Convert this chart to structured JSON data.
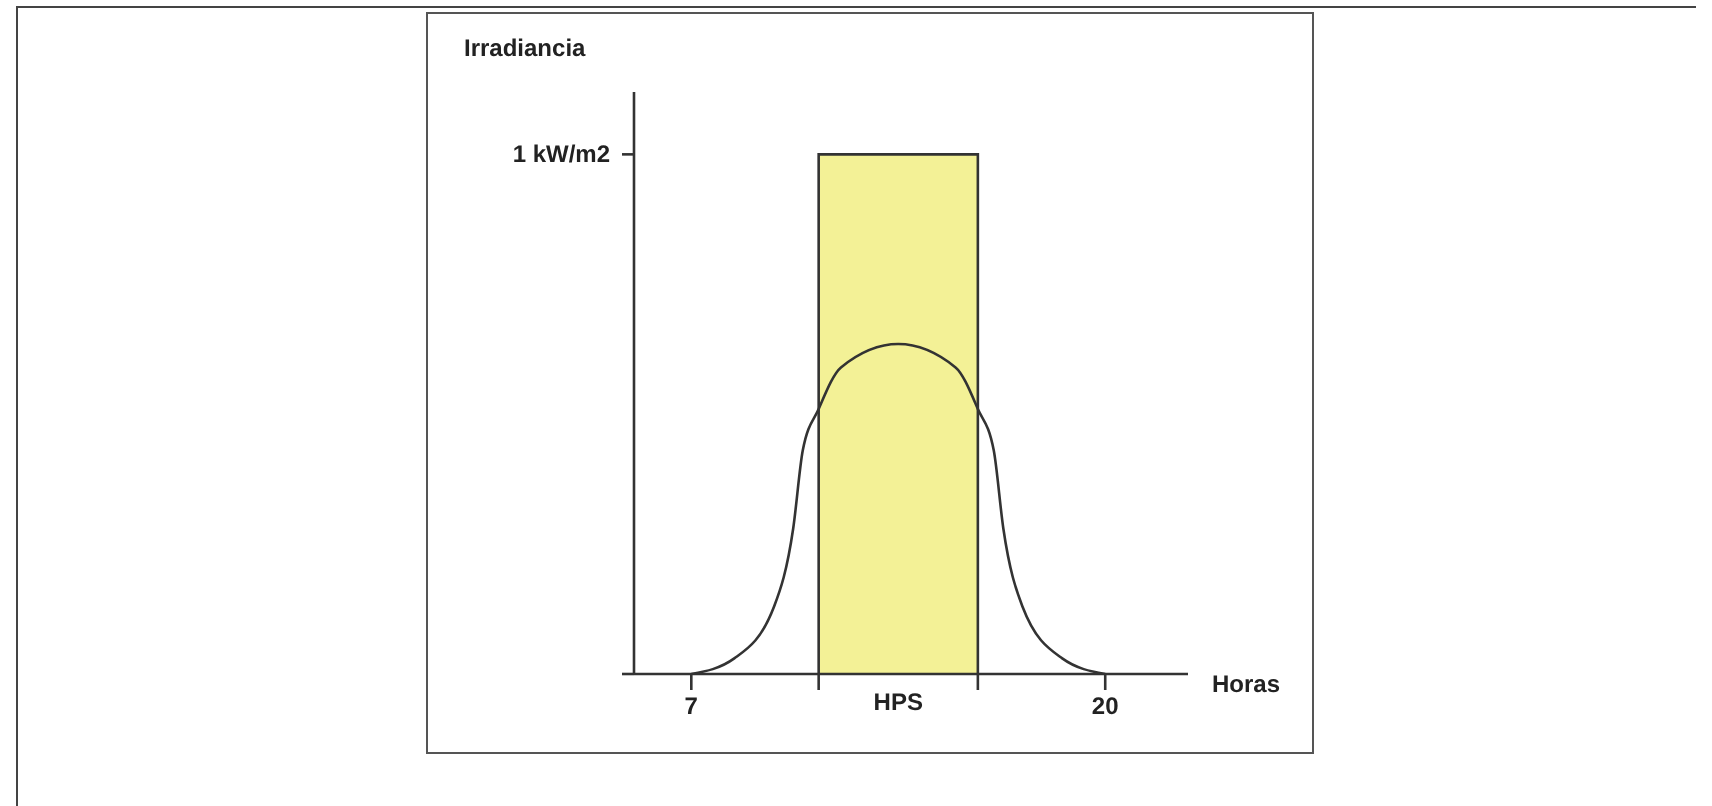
{
  "chart_data": {
    "type": "line",
    "xlabel": "Horas",
    "ylabel": "Irradiancia",
    "xlim": [
      5.2,
      22.6
    ],
    "ylim": [
      0,
      1.12
    ],
    "xticks": [
      7,
      {
        "value": 11,
        "label": null
      },
      {
        "value": 16,
        "label": null
      },
      20
    ],
    "yticks": [
      {
        "value": 0,
        "label": null
      },
      {
        "value": 1,
        "label": "1 kW/m2"
      }
    ],
    "grid": false,
    "legend": false,
    "marker": "none",
    "annotations": [
      {
        "text": "HPS",
        "x": 13.5,
        "y": 0
      }
    ],
    "series": [
      {
        "type": "area",
        "color": "#f3f196",
        "x": [
          11,
          11,
          16,
          16
        ],
        "values": [
          0,
          1,
          1,
          0
        ]
      },
      {
        "color": "#333333",
        "x": [
          7,
          8.35,
          9.6,
          10.2,
          10.5,
          11,
          11.7,
          13.5,
          15.3,
          16,
          16.5,
          16.8,
          17.4,
          18.65,
          20
        ],
        "values": [
          0,
          0.03,
          0.13,
          0.28,
          0.43,
          0.51,
          0.59,
          0.635,
          0.59,
          0.51,
          0.43,
          0.28,
          0.13,
          0.03,
          0
        ]
      }
    ]
  }
}
